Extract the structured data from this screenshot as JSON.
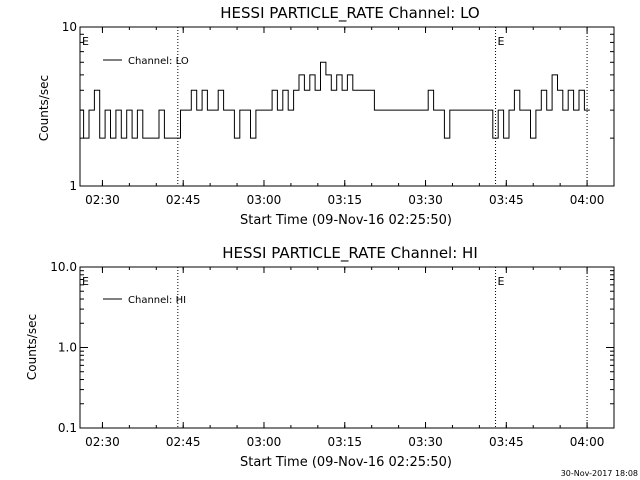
{
  "chart_data": [
    {
      "type": "line",
      "title": "HESSI PARTICLE_RATE Channel: LO",
      "xlabel": "Start Time (09-Nov-16 02:25:50)",
      "ylabel": "Counts/sec",
      "yscale": "log",
      "ylim": [
        1,
        10
      ],
      "xlim": [
        "02:25:50",
        "04:05:00"
      ],
      "x_ticks": [
        "02:30",
        "02:45",
        "03:00",
        "03:15",
        "03:30",
        "03:45",
        "04:00"
      ],
      "y_ticks": [
        "1",
        "10"
      ],
      "legend": {
        "position": "top-left",
        "entries": [
          "Channel: LO"
        ]
      },
      "event_markers": [
        {
          "time": "02:25:50",
          "label": "E"
        },
        {
          "time": "02:44:00",
          "label": ""
        },
        {
          "time": "03:43:00",
          "label": "E"
        },
        {
          "time": "04:00:00",
          "label": ""
        }
      ],
      "series": [
        {
          "name": "Channel: LO",
          "x": [
            "02:26",
            "02:27",
            "02:28",
            "02:29",
            "02:30",
            "02:31",
            "02:32",
            "02:33",
            "02:34",
            "02:35",
            "02:36",
            "02:37",
            "02:38",
            "02:39",
            "02:40",
            "02:41",
            "02:42",
            "02:43",
            "02:44",
            "02:45",
            "02:46",
            "02:47",
            "02:48",
            "02:49",
            "02:50",
            "02:51",
            "02:52",
            "02:53",
            "02:54",
            "02:55",
            "02:56",
            "02:57",
            "02:58",
            "02:59",
            "03:00",
            "03:01",
            "03:02",
            "03:03",
            "03:04",
            "03:05",
            "03:06",
            "03:07",
            "03:08",
            "03:09",
            "03:10",
            "03:11",
            "03:12",
            "03:13",
            "03:14",
            "03:15",
            "03:16",
            "03:17",
            "03:18",
            "03:19",
            "03:20",
            "03:21",
            "03:22",
            "03:23",
            "03:24",
            "03:25",
            "03:26",
            "03:27",
            "03:28",
            "03:29",
            "03:30",
            "03:31",
            "03:32",
            "03:33",
            "03:34",
            "03:35",
            "03:36",
            "03:37",
            "03:38",
            "03:39",
            "03:40",
            "03:41",
            "03:42",
            "03:43",
            "03:44",
            "03:45",
            "03:46",
            "03:47",
            "03:48",
            "03:49",
            "03:50",
            "03:51",
            "03:52",
            "03:53",
            "03:54",
            "03:55",
            "03:56",
            "03:57",
            "03:58",
            "03:59",
            "04:00"
          ],
          "values": [
            3,
            2,
            3,
            4,
            2,
            3,
            2,
            3,
            2,
            3,
            2,
            3,
            2,
            2,
            2,
            3,
            2,
            2,
            2,
            3,
            3,
            4,
            3,
            4,
            3,
            3,
            4,
            3,
            3,
            2,
            3,
            3,
            2,
            3,
            3,
            3,
            4,
            3,
            4,
            3,
            4,
            5,
            4,
            5,
            4,
            6,
            5,
            4,
            5,
            4,
            5,
            4,
            4,
            4,
            4,
            3,
            3,
            3,
            3,
            3,
            3,
            3,
            3,
            3,
            3,
            4,
            3,
            3,
            2,
            3,
            3,
            3,
            3,
            3,
            3,
            3,
            3,
            2,
            3,
            2,
            3,
            4,
            3,
            3,
            2,
            3,
            4,
            3,
            5,
            4,
            3,
            4,
            3,
            4,
            3
          ]
        }
      ]
    },
    {
      "type": "line",
      "title": "HESSI PARTICLE_RATE Channel: HI",
      "xlabel": "Start Time (09-Nov-16 02:25:50)",
      "ylabel": "Counts/sec",
      "yscale": "log",
      "ylim": [
        0.1,
        10.0
      ],
      "xlim": [
        "02:25:50",
        "04:05:00"
      ],
      "x_ticks": [
        "02:30",
        "02:45",
        "03:00",
        "03:15",
        "03:30",
        "03:45",
        "04:00"
      ],
      "y_ticks": [
        "0.1",
        "1.0",
        "10.0"
      ],
      "legend": {
        "position": "top-left",
        "entries": [
          "Channel: HI"
        ]
      },
      "event_markers": [
        {
          "time": "02:25:50",
          "label": "E"
        },
        {
          "time": "02:44:00",
          "label": ""
        },
        {
          "time": "03:43:00",
          "label": "E"
        },
        {
          "time": "04:00:00",
          "label": ""
        }
      ],
      "series": [
        {
          "name": "Channel: HI",
          "x": [],
          "values": []
        }
      ]
    }
  ],
  "footer": {
    "timestamp": "30-Nov-2017 18:08"
  }
}
